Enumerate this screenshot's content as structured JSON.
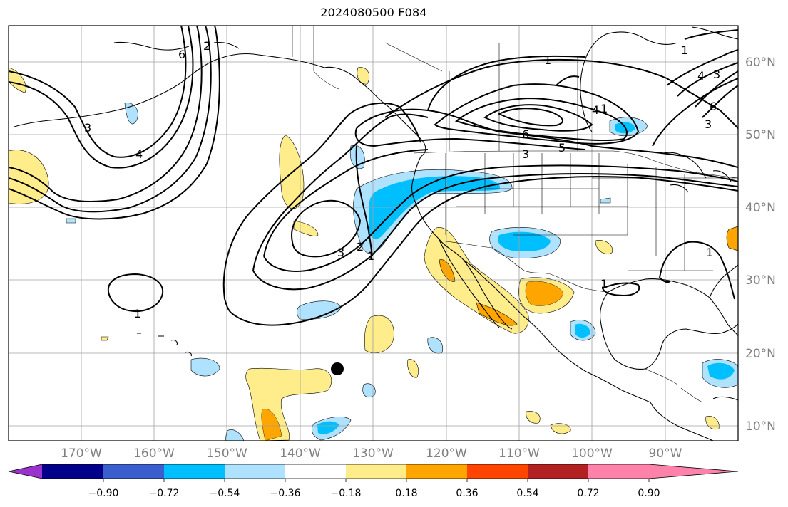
{
  "title": "2024080500 F084",
  "map": {
    "projection": "equirectangular",
    "lon_range": [
      -180,
      -80
    ],
    "lat_range": [
      8,
      65
    ],
    "gridlines": true,
    "lon_labels": [
      "170°W",
      "160°W",
      "150°W",
      "140°W",
      "130°W",
      "120°W",
      "110°W",
      "100°W",
      "90°W"
    ],
    "lat_labels": [
      "10°N",
      "20°N",
      "30°N",
      "40°N",
      "50°N",
      "60°N"
    ],
    "station_marker": {
      "lon": -135,
      "lat": 18
    }
  },
  "colorbar": {
    "colors": [
      "#9a32cd",
      "#00008b",
      "#3a5fcd",
      "#00bfff",
      "#afe2ff",
      "#ffffff",
      "#ffec8b",
      "#ffa500",
      "#ff4500",
      "#b22222",
      "#ff82ab"
    ],
    "tick_labels": [
      "−0.90",
      "−0.72",
      "−0.54",
      "−0.36",
      "−0.18",
      "0.18",
      "0.36",
      "0.54",
      "0.72",
      "0.90"
    ],
    "extend": "both"
  },
  "contour_labels": [
    "1",
    "1",
    "1",
    "1",
    "1",
    "1",
    "2",
    "2",
    "3",
    "3",
    "3",
    "3",
    "3",
    "4",
    "4",
    "4",
    "5",
    "6",
    "6",
    "6",
    "1"
  ]
}
